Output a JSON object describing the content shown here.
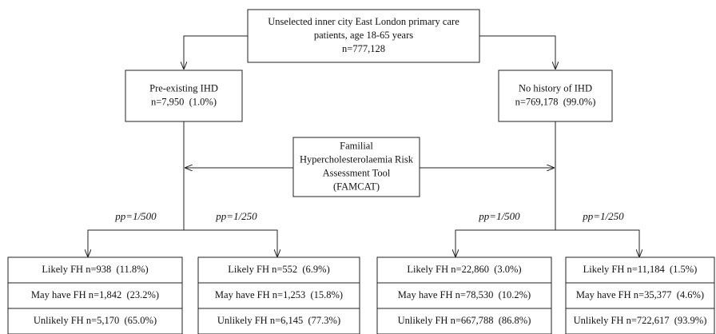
{
  "root": {
    "lines": [
      "Unselected inner city East London primary care",
      "patients, age 18-65 years",
      "n=777,128"
    ]
  },
  "branches": [
    {
      "lines": [
        "Pre-existing IHD",
        "n=7,950  (1.0%)"
      ]
    },
    {
      "lines": [
        "No history of IHD",
        "n=769,178  (99.0%)"
      ]
    }
  ],
  "tool": {
    "lines": [
      "Familial",
      "Hypercholesterolaemia Risk",
      "Assessment Tool",
      "(FAMCAT)"
    ]
  },
  "groups": [
    {
      "label": "pp=1/500",
      "rows": [
        "Likely FH n=938  (11.8%)",
        "May have FH n=1,842  (23.2%)",
        "Unlikely FH n=5,170  (65.0%)"
      ]
    },
    {
      "label": "pp=1/250",
      "rows": [
        "Likely FH n=552  (6.9%)",
        "May have FH n=1,253  (15.8%)",
        "Unlikely FH n=6,145  (77.3%)"
      ]
    },
    {
      "label": "pp=1/500",
      "rows": [
        "Likely FH n=22,860  (3.0%)",
        "May have FH n=78,530  (10.2%)",
        "Unlikely FH n=667,788  (86.8%)"
      ]
    },
    {
      "label": "pp=1/250",
      "rows": [
        "Likely FH n=11,184  (1.5%)",
        "May have FH n=35,377  (4.6%)",
        "Unlikely FH n=722,617  (93.9%)"
      ]
    }
  ]
}
